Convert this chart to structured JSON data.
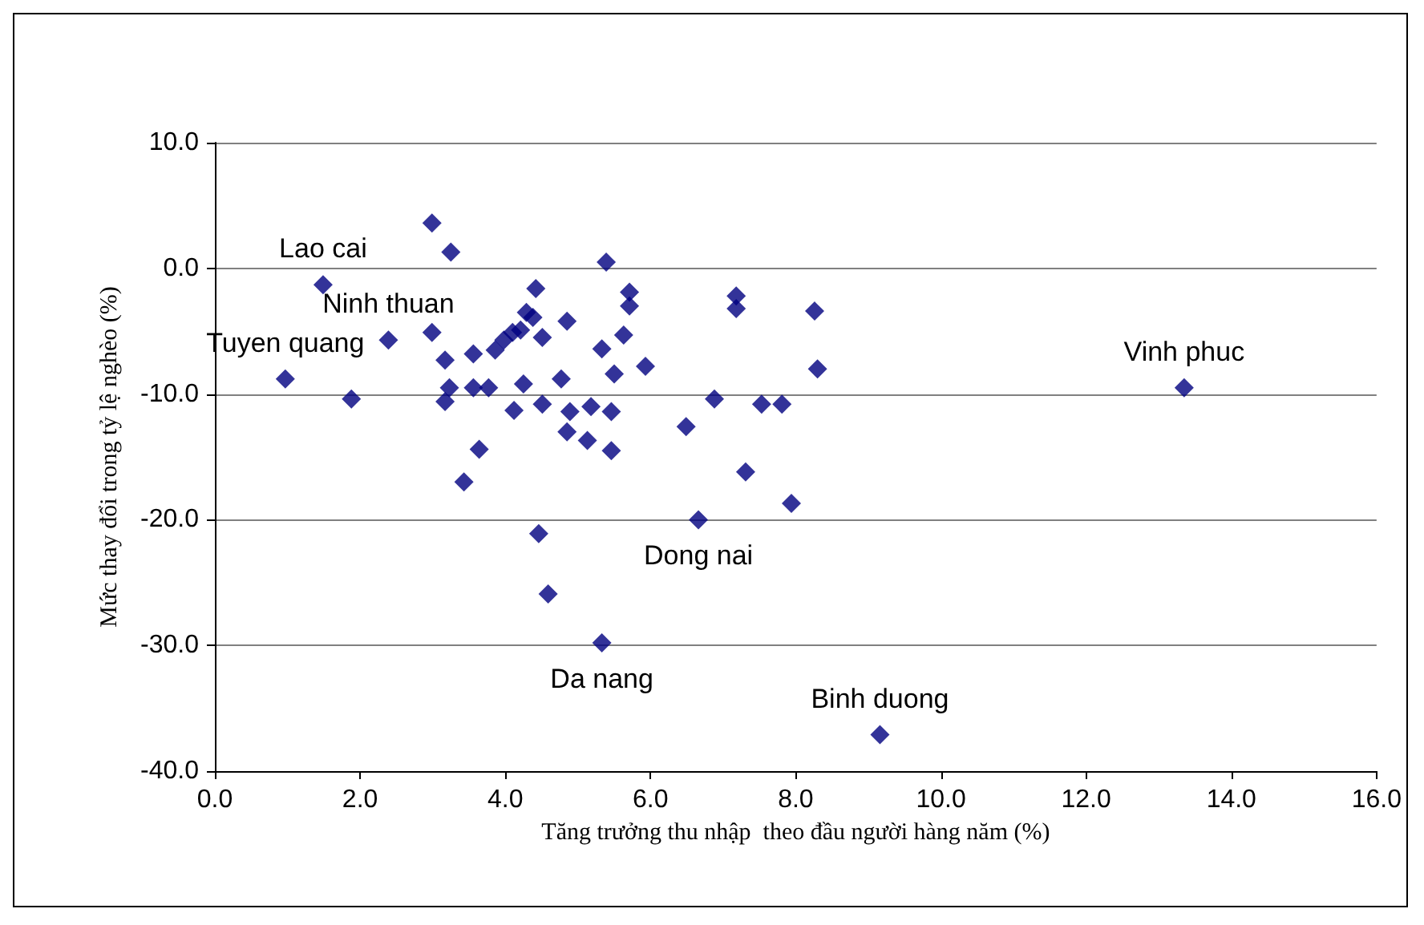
{
  "chart_data": {
    "type": "scatter",
    "xlabel": "Tăng trưởng thu nhập  theo đầu người hàng năm (%)",
    "ylabel": "Mức thay đổi trong tỷ lệ nghèo (%)",
    "x": [
      0.97,
      1.49,
      1.88,
      2.39,
      2.99,
      2.99,
      3.25,
      3.17,
      3.17,
      3.23,
      3.56,
      3.56,
      3.43,
      3.64,
      3.77,
      3.98,
      4.1,
      4.21,
      3.86,
      4.29,
      4.38,
      4.42,
      4.51,
      4.85,
      4.25,
      4.12,
      4.51,
      4.77,
      4.89,
      5.18,
      5.46,
      4.85,
      5.13,
      5.46,
      5.39,
      5.71,
      5.71,
      5.63,
      5.33,
      5.5,
      5.93,
      7.18,
      7.18,
      8.26,
      8.3,
      6.88,
      7.53,
      7.81,
      6.49,
      7.31,
      7.94,
      6.66,
      4.46,
      4.59,
      5.33,
      9.16,
      13.35
    ],
    "values": [
      -8.8,
      -1.3,
      -10.4,
      -5.7,
      3.6,
      -5.1,
      1.3,
      -7.3,
      -10.6,
      -9.5,
      -6.8,
      -9.5,
      -17.0,
      -14.4,
      -9.5,
      -5.7,
      -5.1,
      -4.9,
      -6.5,
      -3.5,
      -3.9,
      -1.6,
      -5.5,
      -4.2,
      -9.2,
      -11.3,
      -10.8,
      -8.8,
      -11.4,
      -11.0,
      -11.4,
      -13.0,
      -13.7,
      -14.5,
      0.5,
      -1.9,
      -3.0,
      -5.3,
      -6.4,
      -8.4,
      -7.8,
      -2.2,
      -3.2,
      -3.4,
      -8.0,
      -10.4,
      -10.8,
      -10.8,
      -12.6,
      -16.2,
      -18.7,
      -20.0,
      -21.1,
      -25.9,
      -29.8,
      -37.1,
      -9.5
    ],
    "color": "#000080",
    "marker": "diamond",
    "xlim": [
      0,
      16
    ],
    "xticks": [
      {
        "value": 0,
        "label": "0.0"
      },
      {
        "value": 2,
        "label": "2.0"
      },
      {
        "value": 4,
        "label": "4.0"
      },
      {
        "value": 6,
        "label": "6.0"
      },
      {
        "value": 8,
        "label": "8.0"
      },
      {
        "value": 10,
        "label": "10.0"
      },
      {
        "value": 12,
        "label": "12.0"
      },
      {
        "value": 14,
        "label": "14.0"
      },
      {
        "value": 16,
        "label": "16.0"
      }
    ],
    "ylim": [
      -40,
      10
    ],
    "yticks": [
      {
        "value": -40,
        "label": "-40.0"
      },
      {
        "value": -30,
        "label": "-30.0"
      },
      {
        "value": -20,
        "label": "-20.0"
      },
      {
        "value": -10,
        "label": "-10.0"
      },
      {
        "value": 0,
        "label": "0.0"
      },
      {
        "value": 10,
        "label": "10.0"
      }
    ],
    "grid": "y",
    "annotations": [
      {
        "text": "Lao cai",
        "x": 1.49,
        "y": -1.3
      },
      {
        "text": "Ninh thuan",
        "x": 2.39,
        "y": -5.7
      },
      {
        "text": "Tuyen quang",
        "x": 0.97,
        "y": -8.8
      },
      {
        "text": "Vinh phuc",
        "x": 13.35,
        "y": -9.5
      },
      {
        "text": "Dong nai",
        "x": 6.66,
        "y": -20.0
      },
      {
        "text": "Da nang",
        "x": 5.33,
        "y": -29.8
      },
      {
        "text": "Binh duong",
        "x": 9.16,
        "y": -37.1
      }
    ]
  }
}
